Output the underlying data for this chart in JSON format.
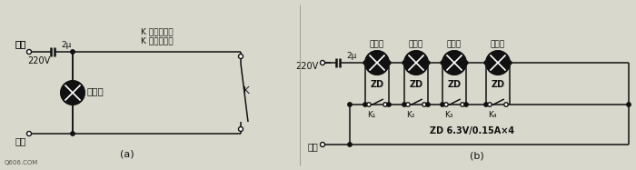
{
  "bg_color": "#d8d8cc",
  "line_color": "#111111",
  "text_color": "#111111",
  "fig_width": 7.0,
  "fig_height": 1.87,
  "dpi": 100,
  "label_a": "(a)",
  "label_b": "(b)",
  "watermark": "Q606.COM",
  "circuit_a": {
    "fire_label": "火线",
    "ground_label": "地线",
    "voltage_label": "220V",
    "cap_label": "2μ",
    "lamp_label": "小灯泡",
    "switch_label": "K",
    "note1": "K 合上灯泡燃",
    "note2": "K 断开灯泡亮"
  },
  "circuit_b": {
    "voltage_label": "220V",
    "cap_label": "2μ",
    "ground_label": "地线",
    "zd_label": "ZD",
    "spec_label": "ZD 6.3V/0.15A×4",
    "lamp_labels": [
      "阳台灯",
      "厨房灯",
      "厕所灯",
      "过道灯"
    ],
    "switch_labels": [
      "K₁",
      "K₂",
      "K₃",
      "K₄"
    ]
  }
}
